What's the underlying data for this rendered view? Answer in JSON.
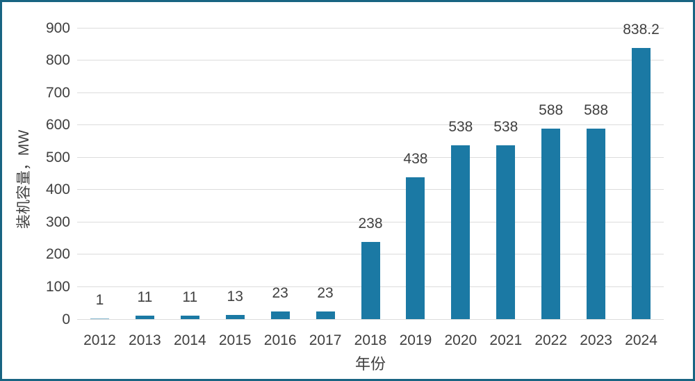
{
  "chart_data": {
    "type": "bar",
    "title": "",
    "categories": [
      "2012",
      "2013",
      "2014",
      "2015",
      "2016",
      "2017",
      "2018",
      "2019",
      "2020",
      "2021",
      "2022",
      "2023",
      "2024"
    ],
    "values": [
      1,
      11,
      11,
      13,
      23,
      23,
      238,
      438,
      538,
      538,
      588,
      588,
      838.2
    ],
    "value_labels": [
      "1",
      "11",
      "11",
      "13",
      "23",
      "23",
      "238",
      "438",
      "538",
      "538",
      "588",
      "588",
      "838.2"
    ],
    "xlabel": "年份",
    "ylabel": "装机容量，MW",
    "ylim": [
      0,
      900
    ],
    "ytick_step": 100,
    "grid": true,
    "legend": false,
    "colors": {
      "bar": "#1B79A4",
      "frame_border": "#186482",
      "text": "#404040",
      "gridline": "#DCDCDC"
    }
  }
}
